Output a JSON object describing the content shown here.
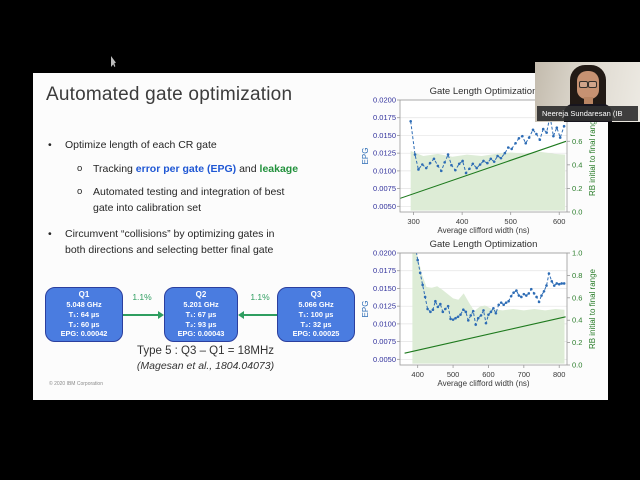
{
  "presenter": {
    "name_label": "Neereja Sundaresan (IB"
  },
  "slide": {
    "title": "Automated gate optimization",
    "bullets": {
      "marker_l1": "•",
      "marker_l2": "o",
      "b1": "Optimize length of each CR gate",
      "b2_seg1": "Tracking ",
      "b2_seg2": "error per gate (EPG)",
      "b2_seg3": " and ",
      "b2_seg4": "leakage",
      "b3_line1": "Automated testing and integration of best",
      "b3_line2": "gate into calibration set",
      "b4_line1": "Circumvent “collisions” by optimizing gates in",
      "b4_line2": "both directions and selecting better final gate"
    },
    "diagram": {
      "box_fill": "#4a7ce0",
      "box_border": "#2b3f9e",
      "arrow_color": "#2f9e60",
      "qubits": [
        {
          "name": "Q1",
          "freq": "5.048 GHz",
          "t1": "T₁: 64 µs",
          "t2": "T₂: 60 µs",
          "epg": "EPG: 0.00042"
        },
        {
          "name": "Q2",
          "freq": "5.201 GHz",
          "t1": "T₁: 67 µs",
          "t2": "T₂: 93 µs",
          "epg": "EPG: 0.00043"
        },
        {
          "name": "Q3",
          "freq": "5.066 GHz",
          "t1": "T₁: 100 µs",
          "t2": "T₂: 32 µs",
          "epg": "EPG: 0.00025"
        }
      ],
      "arrow_labels": [
        "1.1%",
        "1.1%"
      ],
      "caption_line1": "Type 5 : Q3 – Q1 = 18MHz",
      "caption_line2": "(Magesan et al., 1804.04073)"
    },
    "footer": "© 2020 IBM Corporation"
  },
  "chart_data": [
    {
      "type": "line",
      "title": "Gate Length Optimization",
      "xlabel": "Average clifford width (ns)",
      "ylabel_left": "EPG",
      "ylabel_right": "RB initial to final range",
      "xlim": [
        272,
        616
      ],
      "xticks": [
        300,
        400,
        500,
        600
      ],
      "ylim_left": [
        0.0042,
        0.02
      ],
      "yticks_left": [
        0.02,
        0.0175,
        0.015,
        0.0125,
        0.01,
        0.0075,
        0.005
      ],
      "ylim_right": [
        0,
        0.95
      ],
      "yticks_right": [
        0.0,
        0.2,
        0.4,
        0.6,
        0.8
      ],
      "grid": true,
      "legend": "none",
      "colors": {
        "line": "#2d6cb5",
        "trend": "#1e7a1e",
        "band": "#ddecd6",
        "grid": "#e3e3e3",
        "left_ticks": "#31319c",
        "right_ticks": "#2a7d2a",
        "frame": "#999999",
        "text": "#3a3a3a",
        "title": "#2f2f2f"
      },
      "series": [
        {
          "name": "EPG",
          "axis": "left",
          "style": "dashed_markers",
          "x": [
            294,
            303,
            310,
            318,
            326,
            334,
            342,
            350,
            357,
            364,
            371,
            378,
            386,
            394,
            401,
            408,
            415,
            422,
            430,
            437,
            444,
            452,
            459,
            466,
            473,
            480,
            488,
            495,
            502,
            510,
            517,
            524,
            531,
            538,
            546,
            553,
            560,
            567,
            574,
            581,
            588,
            595,
            602,
            610
          ],
          "y": [
            0.017,
            0.0123,
            0.0102,
            0.0109,
            0.0104,
            0.0111,
            0.0117,
            0.0107,
            0.01,
            0.0112,
            0.0123,
            0.0108,
            0.0101,
            0.011,
            0.0114,
            0.0097,
            0.0103,
            0.011,
            0.0104,
            0.0109,
            0.0114,
            0.0111,
            0.0117,
            0.0113,
            0.0121,
            0.0118,
            0.0125,
            0.0133,
            0.0131,
            0.0139,
            0.0146,
            0.0149,
            0.0139,
            0.0147,
            0.0158,
            0.0152,
            0.0144,
            0.0159,
            0.0154,
            0.0177,
            0.0149,
            0.0161,
            0.0147,
            0.0163
          ]
        },
        {
          "name": "RB initial to final range",
          "axis": "right",
          "style": "solid",
          "x": [
            272,
            614
          ],
          "y": [
            0.115,
            0.6
          ]
        }
      ],
      "band": {
        "axis": "left",
        "x": [
          294,
          320,
          350,
          380,
          410,
          440,
          470,
          500,
          530,
          560,
          590,
          612
        ],
        "top": [
          0.0128,
          0.0121,
          0.0124,
          0.012,
          0.0123,
          0.0121,
          0.0124,
          0.0126,
          0.0124,
          0.0127,
          0.0124,
          0.0123
        ],
        "bottom": 0.0044
      }
    },
    {
      "type": "line",
      "title": "Gate Length Optimization",
      "xlabel": "Average clifford width (ns)",
      "ylabel_left": "EPG",
      "ylabel_right": "RB initial to final range",
      "xlim": [
        350,
        822
      ],
      "xticks": [
        400,
        500,
        600,
        700,
        800
      ],
      "ylim_left": [
        0.0042,
        0.02
      ],
      "yticks_left": [
        0.02,
        0.0175,
        0.015,
        0.0125,
        0.01,
        0.0075,
        0.005
      ],
      "ylim_right": [
        0,
        1.0
      ],
      "yticks_right": [
        0.0,
        0.2,
        0.4,
        0.6,
        0.8,
        1.0
      ],
      "grid": true,
      "legend": "none",
      "colors": {
        "line": "#2d6cb5",
        "trend": "#1e7a1e",
        "band": "#ddecd6",
        "grid": "#e3e3e3",
        "left_ticks": "#31319c",
        "right_ticks": "#2a7d2a",
        "frame": "#999999",
        "text": "#3a3a3a",
        "title": "#2f2f2f"
      },
      "series": [
        {
          "name": "EPG",
          "axis": "left",
          "style": "dashed_markers",
          "x": [
            388,
            394,
            400,
            407,
            414,
            421,
            428,
            436,
            443,
            450,
            457,
            464,
            471,
            478,
            486,
            493,
            500,
            507,
            514,
            521,
            529,
            536,
            543,
            550,
            557,
            564,
            571,
            579,
            586,
            593,
            600,
            607,
            614,
            621,
            629,
            636,
            643,
            650,
            657,
            664,
            671,
            679,
            686,
            693,
            700,
            707,
            714,
            721,
            729,
            736,
            743,
            750,
            757,
            764,
            771,
            779,
            786,
            793,
            800,
            807,
            814
          ],
          "y": [
            0.0215,
            0.0208,
            0.019,
            0.0172,
            0.0155,
            0.0138,
            0.0121,
            0.0117,
            0.012,
            0.0132,
            0.0124,
            0.0128,
            0.0117,
            0.0121,
            0.0125,
            0.0107,
            0.0106,
            0.0108,
            0.011,
            0.0113,
            0.012,
            0.0117,
            0.0105,
            0.0112,
            0.0118,
            0.0099,
            0.0108,
            0.0112,
            0.0119,
            0.0101,
            0.0113,
            0.0117,
            0.0122,
            0.0115,
            0.0127,
            0.013,
            0.0127,
            0.013,
            0.0132,
            0.0139,
            0.0144,
            0.0147,
            0.014,
            0.0138,
            0.0142,
            0.014,
            0.0143,
            0.0149,
            0.0143,
            0.0138,
            0.0131,
            0.014,
            0.0146,
            0.0154,
            0.0171,
            0.016,
            0.0154,
            0.0157,
            0.0156,
            0.0157,
            0.0157
          ]
        },
        {
          "name": "RB initial to final range",
          "axis": "right",
          "style": "solid",
          "x": [
            363,
            818
          ],
          "y": [
            0.105,
            0.43
          ]
        }
      ],
      "band": {
        "axis": "left",
        "x": [
          385,
          400,
          412,
          425,
          440,
          455,
          470,
          485,
          500,
          515,
          530,
          545,
          560,
          575,
          590,
          610,
          640,
          670,
          700,
          730,
          760,
          790,
          815
        ],
        "top": [
          0.0212,
          0.0195,
          0.017,
          0.0152,
          0.0151,
          0.0153,
          0.0148,
          0.0142,
          0.0136,
          0.0134,
          0.0143,
          0.013,
          0.0118,
          0.0124,
          0.0126,
          0.0121,
          0.0119,
          0.0121,
          0.0119,
          0.0121,
          0.0119,
          0.0121,
          0.012
        ],
        "bottom": 0.0044
      }
    }
  ]
}
